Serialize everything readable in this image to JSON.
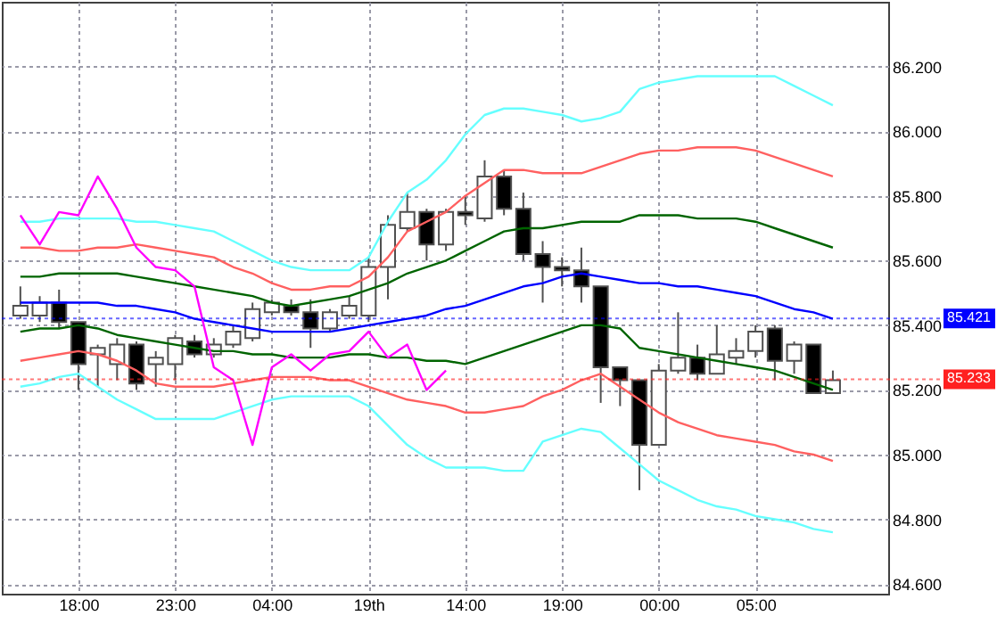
{
  "chart_data": {
    "type": "candlestick",
    "categories": [
      null,
      null,
      null,
      "18:00",
      null,
      null,
      null,
      null,
      "23:00",
      null,
      null,
      null,
      null,
      "04:00",
      null,
      null,
      null,
      null,
      "19th",
      null,
      null,
      null,
      null,
      "14:00",
      null,
      null,
      null,
      null,
      "19:00",
      null,
      null,
      null,
      null,
      "00:00",
      null,
      null,
      null,
      null,
      "05:00",
      null,
      null,
      null,
      null
    ],
    "ohlc": [
      [
        85.43,
        85.52,
        85.42,
        85.46
      ],
      [
        85.43,
        85.49,
        85.41,
        85.47
      ],
      [
        85.47,
        85.51,
        85.39,
        85.41
      ],
      [
        85.41,
        85.41,
        85.2,
        85.28
      ],
      [
        85.31,
        85.34,
        85.21,
        85.33
      ],
      [
        85.28,
        85.36,
        85.23,
        85.34
      ],
      [
        85.34,
        85.35,
        85.2,
        85.22
      ],
      [
        85.28,
        85.32,
        85.21,
        85.3
      ],
      [
        85.28,
        85.37,
        85.23,
        85.36
      ],
      [
        85.35,
        85.37,
        85.3,
        85.31
      ],
      [
        85.31,
        85.36,
        85.3,
        85.34
      ],
      [
        85.34,
        85.4,
        85.33,
        85.38
      ],
      [
        85.36,
        85.47,
        85.35,
        85.45
      ],
      [
        85.44,
        85.48,
        85.43,
        85.47
      ],
      [
        85.46,
        85.48,
        85.43,
        85.44
      ],
      [
        85.44,
        85.48,
        85.33,
        85.39
      ],
      [
        85.39,
        85.45,
        85.38,
        85.44
      ],
      [
        85.43,
        85.49,
        85.42,
        85.46
      ],
      [
        85.43,
        85.61,
        85.41,
        85.58
      ],
      [
        85.58,
        85.74,
        85.48,
        85.71
      ],
      [
        85.7,
        85.81,
        85.69,
        85.75
      ],
      [
        85.75,
        85.76,
        85.6,
        85.65
      ],
      [
        85.65,
        85.76,
        85.63,
        85.75
      ],
      [
        85.75,
        85.8,
        85.71,
        85.74
      ],
      [
        85.73,
        85.91,
        85.72,
        85.86
      ],
      [
        85.86,
        85.88,
        85.74,
        85.76
      ],
      [
        85.76,
        85.81,
        85.6,
        85.62
      ],
      [
        85.62,
        85.66,
        85.47,
        85.58
      ],
      [
        85.58,
        85.61,
        85.52,
        85.57
      ],
      [
        85.57,
        85.64,
        85.47,
        85.52
      ],
      [
        85.52,
        85.52,
        85.16,
        85.27
      ],
      [
        85.27,
        85.27,
        85.15,
        85.23
      ],
      [
        85.23,
        85.23,
        84.89,
        85.03
      ],
      [
        85.03,
        85.28,
        85.03,
        85.26
      ],
      [
        85.26,
        85.44,
        85.25,
        85.3
      ],
      [
        85.3,
        85.34,
        85.23,
        85.25
      ],
      [
        85.25,
        85.4,
        85.25,
        85.31
      ],
      [
        85.3,
        85.36,
        85.28,
        85.32
      ],
      [
        85.32,
        85.4,
        85.3,
        85.38
      ],
      [
        85.39,
        85.4,
        85.23,
        85.29
      ],
      [
        85.29,
        85.35,
        85.25,
        85.34
      ],
      [
        85.34,
        85.34,
        85.19,
        85.19
      ],
      [
        85.19,
        85.26,
        85.19,
        85.23
      ]
    ],
    "series": [
      {
        "type": "line",
        "color": "#66ffff",
        "values": [
          85.72,
          85.72,
          85.73,
          85.73,
          85.73,
          85.73,
          85.72,
          85.72,
          85.71,
          85.7,
          85.69,
          85.66,
          85.63,
          85.6,
          85.58,
          85.57,
          85.57,
          85.57,
          85.61,
          85.72,
          85.81,
          85.85,
          85.91,
          85.99,
          86.05,
          86.07,
          86.07,
          86.06,
          86.05,
          86.03,
          86.04,
          86.06,
          86.13,
          86.15,
          86.16,
          86.17,
          86.17,
          86.17,
          86.17,
          86.17,
          86.14,
          86.11,
          86.08
        ]
      },
      {
        "type": "line",
        "color": "#66ffff",
        "values": [
          85.21,
          85.22,
          85.24,
          85.25,
          85.21,
          85.17,
          85.14,
          85.11,
          85.11,
          85.11,
          85.11,
          85.13,
          85.15,
          85.17,
          85.18,
          85.18,
          85.18,
          85.18,
          85.15,
          85.09,
          85.03,
          84.99,
          84.96,
          84.96,
          84.96,
          84.95,
          84.95,
          85.04,
          85.06,
          85.08,
          85.07,
          85.02,
          84.97,
          84.92,
          84.89,
          84.86,
          84.84,
          84.83,
          84.81,
          84.8,
          84.79,
          84.77,
          84.76
        ]
      },
      {
        "type": "line",
        "color": "#ff6060",
        "values": [
          85.64,
          85.64,
          85.63,
          85.63,
          85.64,
          85.64,
          85.65,
          85.64,
          85.63,
          85.62,
          85.61,
          85.58,
          85.56,
          85.53,
          85.51,
          85.51,
          85.52,
          85.52,
          85.55,
          85.61,
          85.69,
          85.72,
          85.75,
          85.8,
          85.84,
          85.88,
          85.88,
          85.87,
          85.87,
          85.87,
          85.89,
          85.91,
          85.93,
          85.94,
          85.94,
          85.95,
          85.95,
          85.95,
          85.94,
          85.92,
          85.9,
          85.88,
          85.86
        ]
      },
      {
        "type": "line",
        "color": "#ff6060",
        "values": [
          85.29,
          85.3,
          85.31,
          85.32,
          85.31,
          85.29,
          85.26,
          85.22,
          85.21,
          85.21,
          85.21,
          85.22,
          85.23,
          85.24,
          85.24,
          85.24,
          85.23,
          85.23,
          85.21,
          85.19,
          85.17,
          85.16,
          85.15,
          85.13,
          85.13,
          85.14,
          85.15,
          85.18,
          85.2,
          85.23,
          85.25,
          85.21,
          85.17,
          85.13,
          85.1,
          85.08,
          85.06,
          85.05,
          85.04,
          85.03,
          85.01,
          85.0,
          84.98
        ]
      },
      {
        "type": "line",
        "color": "#006400",
        "values": [
          85.55,
          85.55,
          85.56,
          85.56,
          85.56,
          85.56,
          85.55,
          85.54,
          85.53,
          85.52,
          85.51,
          85.5,
          85.49,
          85.47,
          85.46,
          85.47,
          85.48,
          85.49,
          85.51,
          85.53,
          85.56,
          85.58,
          85.6,
          85.63,
          85.66,
          85.69,
          85.7,
          85.7,
          85.71,
          85.72,
          85.72,
          85.72,
          85.74,
          85.74,
          85.74,
          85.73,
          85.73,
          85.73,
          85.72,
          85.7,
          85.68,
          85.66,
          85.64
        ]
      },
      {
        "type": "line",
        "color": "#006400",
        "values": [
          85.38,
          85.39,
          85.39,
          85.4,
          85.39,
          85.37,
          85.36,
          85.35,
          85.34,
          85.33,
          85.32,
          85.32,
          85.31,
          85.31,
          85.3,
          85.3,
          85.3,
          85.31,
          85.31,
          85.3,
          85.3,
          85.29,
          85.29,
          85.28,
          85.3,
          85.32,
          85.34,
          85.36,
          85.38,
          85.4,
          85.4,
          85.39,
          85.33,
          85.32,
          85.31,
          85.3,
          85.29,
          85.28,
          85.27,
          85.26,
          85.24,
          85.22,
          85.2
        ]
      },
      {
        "type": "line",
        "color": "#0000ff",
        "values": [
          85.47,
          85.47,
          85.47,
          85.47,
          85.47,
          85.46,
          85.46,
          85.45,
          85.44,
          85.42,
          85.41,
          85.4,
          85.39,
          85.38,
          85.38,
          85.38,
          85.38,
          85.39,
          85.4,
          85.41,
          85.42,
          85.43,
          85.45,
          85.46,
          85.48,
          85.5,
          85.52,
          85.53,
          85.55,
          85.56,
          85.55,
          85.54,
          85.53,
          85.53,
          85.52,
          85.52,
          85.51,
          85.5,
          85.49,
          85.47,
          85.45,
          85.44,
          85.42
        ]
      },
      {
        "type": "line",
        "color": "#ff00ff",
        "values": [
          85.74,
          85.65,
          85.75,
          85.74,
          85.86,
          85.76,
          85.64,
          85.58,
          85.57,
          85.52,
          85.27,
          85.23,
          85.03,
          85.27,
          85.31,
          85.26,
          85.31,
          85.32,
          85.38,
          85.3,
          85.34,
          85.2,
          85.26,
          null,
          null,
          null,
          null,
          null,
          null,
          null,
          null,
          null,
          null,
          null,
          null,
          null,
          null,
          null,
          null,
          null,
          null,
          null,
          null
        ]
      }
    ],
    "ylim": [
      84.57,
      86.4
    ],
    "yticks": [
      {
        "value": 84.6,
        "label": "84.600"
      },
      {
        "value": 84.8,
        "label": "84.800"
      },
      {
        "value": 85.0,
        "label": "85.000"
      },
      {
        "value": 85.2,
        "label": "85.200"
      },
      {
        "value": 85.4,
        "label": "85.400"
      },
      {
        "value": 85.6,
        "label": "85.600"
      },
      {
        "value": 85.8,
        "label": "85.800"
      },
      {
        "value": 86.0,
        "label": "86.000"
      },
      {
        "value": 86.2,
        "label": "86.200"
      }
    ],
    "grid": true,
    "ref_lines": [
      {
        "axis": "y",
        "value": 85.421,
        "label": "85.421",
        "color": "#0000ff",
        "line_style": "dotted"
      },
      {
        "axis": "y",
        "value": 85.233,
        "label": "85.233",
        "color": "#ff2020",
        "line_style": "dotted"
      }
    ]
  }
}
